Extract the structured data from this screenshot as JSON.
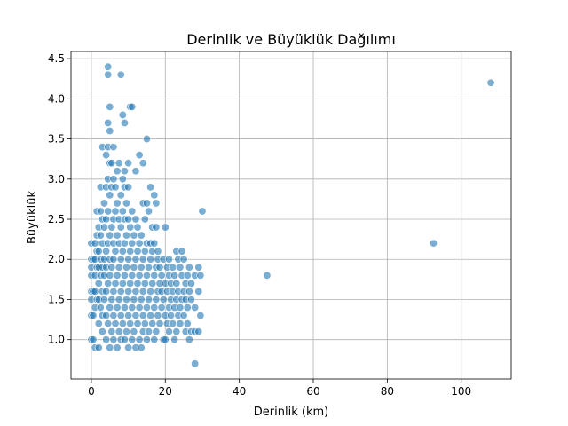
{
  "chart_data": {
    "type": "scatter",
    "title": "Derinlik ve Büyüklük Dağılımı",
    "xlabel": "Derinlik (km)",
    "ylabel": "Büyüklük",
    "xlim": [
      -5.5,
      113.5
    ],
    "ylim": [
      0.51,
      4.59
    ],
    "xticks": [
      "0",
      "20",
      "40",
      "60",
      "80",
      "100"
    ],
    "yticks": [
      "1.0",
      "1.5",
      "2.0",
      "2.5",
      "3.0",
      "3.5",
      "4.0",
      "4.5"
    ],
    "grid": true,
    "legend": "none",
    "series": [
      {
        "color": "#1f77b4",
        "points": [
          [
            0,
            1.0
          ],
          [
            0,
            1.3
          ],
          [
            0,
            1.5
          ],
          [
            0,
            1.6
          ],
          [
            0,
            1.8
          ],
          [
            0,
            1.9
          ],
          [
            0,
            2.0
          ],
          [
            0,
            2.2
          ],
          [
            0.5,
            1.0
          ],
          [
            0.5,
            1.3
          ],
          [
            0.5,
            1.6
          ],
          [
            0.5,
            2.0
          ],
          [
            1,
            1.4
          ],
          [
            1,
            1.6
          ],
          [
            1,
            1.8
          ],
          [
            1,
            2.0
          ],
          [
            1,
            2.2
          ],
          [
            1,
            0.9
          ],
          [
            1.5,
            1.5
          ],
          [
            1.5,
            1.9
          ],
          [
            1.5,
            2.1
          ],
          [
            1.5,
            2.3
          ],
          [
            1.5,
            2.6
          ],
          [
            2,
            1.2
          ],
          [
            2,
            1.5
          ],
          [
            2,
            1.7
          ],
          [
            2,
            1.9
          ],
          [
            2,
            2.1
          ],
          [
            2,
            2.4
          ],
          [
            2,
            0.9
          ],
          [
            2.5,
            1.4
          ],
          [
            2.5,
            1.8
          ],
          [
            2.5,
            2.0
          ],
          [
            2.5,
            2.3
          ],
          [
            2.5,
            2.6
          ],
          [
            2.5,
            2.9
          ],
          [
            3,
            1.1
          ],
          [
            3,
            1.3
          ],
          [
            3,
            1.6
          ],
          [
            3,
            1.9
          ],
          [
            3,
            2.2
          ],
          [
            3,
            2.5
          ],
          [
            3,
            3.4
          ],
          [
            3.5,
            1.5
          ],
          [
            3.5,
            1.8
          ],
          [
            3.5,
            2.0
          ],
          [
            3.5,
            2.4
          ],
          [
            3.5,
            2.7
          ],
          [
            4,
            1.0
          ],
          [
            4,
            1.3
          ],
          [
            4,
            1.6
          ],
          [
            4,
            1.9
          ],
          [
            4,
            2.1
          ],
          [
            4,
            2.5
          ],
          [
            4,
            2.9
          ],
          [
            4,
            3.3
          ],
          [
            4.5,
            1.2
          ],
          [
            4.5,
            1.7
          ],
          [
            4.5,
            2.2
          ],
          [
            4.5,
            2.6
          ],
          [
            4.5,
            3.0
          ],
          [
            4.5,
            3.4
          ],
          [
            4.5,
            3.7
          ],
          [
            4.5,
            4.3
          ],
          [
            4.5,
            4.4
          ],
          [
            5,
            0.9
          ],
          [
            5,
            1.4
          ],
          [
            5,
            1.8
          ],
          [
            5,
            2.0
          ],
          [
            5,
            2.3
          ],
          [
            5,
            2.8
          ],
          [
            5,
            3.2
          ],
          [
            5,
            3.6
          ],
          [
            5,
            3.9
          ],
          [
            5.5,
            1.1
          ],
          [
            5.5,
            1.5
          ],
          [
            5.5,
            1.9
          ],
          [
            5.5,
            2.4
          ],
          [
            5.5,
            2.9
          ],
          [
            5.5,
            3.2
          ],
          [
            6,
            1.0
          ],
          [
            6,
            1.3
          ],
          [
            6,
            1.6
          ],
          [
            6,
            2.0
          ],
          [
            6,
            2.2
          ],
          [
            6,
            2.5
          ],
          [
            6,
            3.0
          ],
          [
            6,
            3.4
          ],
          [
            6.5,
            1.2
          ],
          [
            6.5,
            1.7
          ],
          [
            6.5,
            2.1
          ],
          [
            6.5,
            2.6
          ],
          [
            6.5,
            2.9
          ],
          [
            7,
            0.9
          ],
          [
            7,
            1.4
          ],
          [
            7,
            1.8
          ],
          [
            7,
            2.3
          ],
          [
            7,
            2.7
          ],
          [
            7,
            3.1
          ],
          [
            7.5,
            1.1
          ],
          [
            7.5,
            1.5
          ],
          [
            7.5,
            1.9
          ],
          [
            7.5,
            2.2
          ],
          [
            7.5,
            2.5
          ],
          [
            7.5,
            3.2
          ],
          [
            8,
            1.0
          ],
          [
            8,
            1.3
          ],
          [
            8,
            1.6
          ],
          [
            8,
            2.0
          ],
          [
            8,
            2.4
          ],
          [
            8,
            2.8
          ],
          [
            8,
            4.3
          ],
          [
            8.5,
            1.2
          ],
          [
            8.5,
            1.7
          ],
          [
            8.5,
            2.1
          ],
          [
            8.5,
            2.6
          ],
          [
            8.5,
            3.0
          ],
          [
            8.5,
            3.8
          ],
          [
            9,
            1.0
          ],
          [
            9,
            1.4
          ],
          [
            9,
            1.8
          ],
          [
            9,
            2.2
          ],
          [
            9,
            2.5
          ],
          [
            9,
            2.9
          ],
          [
            9,
            3.1
          ],
          [
            9,
            3.7
          ],
          [
            9.5,
            1.1
          ],
          [
            9.5,
            1.5
          ],
          [
            9.5,
            1.9
          ],
          [
            9.5,
            2.3
          ],
          [
            9.5,
            2.7
          ],
          [
            10,
            0.9
          ],
          [
            10,
            1.3
          ],
          [
            10,
            1.6
          ],
          [
            10,
            2.0
          ],
          [
            10,
            2.5
          ],
          [
            10,
            2.9
          ],
          [
            10,
            3.2
          ],
          [
            10.5,
            1.2
          ],
          [
            10.5,
            1.7
          ],
          [
            10.5,
            2.1
          ],
          [
            10.5,
            2.4
          ],
          [
            10.5,
            3.9
          ],
          [
            11,
            1.0
          ],
          [
            11,
            1.4
          ],
          [
            11,
            1.8
          ],
          [
            11,
            2.2
          ],
          [
            11,
            2.6
          ],
          [
            11,
            3.9
          ],
          [
            11.5,
            1.1
          ],
          [
            11.5,
            1.5
          ],
          [
            11.5,
            1.9
          ],
          [
            11.5,
            2.3
          ],
          [
            12,
            0.9
          ],
          [
            12,
            1.3
          ],
          [
            12,
            1.6
          ],
          [
            12,
            2.0
          ],
          [
            12,
            2.5
          ],
          [
            12,
            3.1
          ],
          [
            12.5,
            1.2
          ],
          [
            12.5,
            1.7
          ],
          [
            12.5,
            2.1
          ],
          [
            12.5,
            2.4
          ],
          [
            13,
            1.0
          ],
          [
            13,
            1.4
          ],
          [
            13,
            1.8
          ],
          [
            13,
            2.2
          ],
          [
            13,
            3.3
          ],
          [
            13.5,
            0.9
          ],
          [
            13.5,
            1.5
          ],
          [
            13.5,
            1.9
          ],
          [
            13.5,
            2.3
          ],
          [
            14,
            1.1
          ],
          [
            14,
            1.3
          ],
          [
            14,
            1.6
          ],
          [
            14,
            2.0
          ],
          [
            14,
            2.7
          ],
          [
            14,
            3.2
          ],
          [
            14.5,
            1.2
          ],
          [
            14.5,
            1.7
          ],
          [
            14.5,
            2.1
          ],
          [
            14.5,
            2.5
          ],
          [
            15,
            1.0
          ],
          [
            15,
            1.4
          ],
          [
            15,
            1.8
          ],
          [
            15,
            2.2
          ],
          [
            15,
            2.7
          ],
          [
            15,
            3.5
          ],
          [
            15.5,
            1.1
          ],
          [
            15.5,
            1.5
          ],
          [
            15.5,
            1.9
          ],
          [
            15.5,
            2.6
          ],
          [
            16,
            1.3
          ],
          [
            16,
            1.6
          ],
          [
            16,
            2.0
          ],
          [
            16,
            2.2
          ],
          [
            16,
            2.9
          ],
          [
            16.5,
            1.2
          ],
          [
            16.5,
            1.7
          ],
          [
            16.5,
            2.1
          ],
          [
            16.5,
            2.4
          ],
          [
            17,
            1.0
          ],
          [
            17,
            1.4
          ],
          [
            17,
            1.8
          ],
          [
            17,
            2.2
          ],
          [
            17,
            2.8
          ],
          [
            17.5,
            1.1
          ],
          [
            17.5,
            1.5
          ],
          [
            17.5,
            1.9
          ],
          [
            17.5,
            2.4
          ],
          [
            17.5,
            2.7
          ],
          [
            18,
            1.3
          ],
          [
            18,
            1.6
          ],
          [
            18,
            2.0
          ],
          [
            18,
            2.1
          ],
          [
            18.5,
            1.2
          ],
          [
            18.5,
            1.7
          ],
          [
            18.5,
            1.9
          ],
          [
            19,
            1.4
          ],
          [
            19,
            1.8
          ],
          [
            19,
            1.6
          ],
          [
            19.5,
            1.0
          ],
          [
            19.5,
            1.5
          ],
          [
            19.5,
            2.0
          ],
          [
            20,
            1.0
          ],
          [
            20,
            1.3
          ],
          [
            20,
            1.7
          ],
          [
            20,
            2.4
          ],
          [
            20.5,
            1.2
          ],
          [
            20.5,
            1.6
          ],
          [
            20.5,
            1.9
          ],
          [
            21,
            1.1
          ],
          [
            21,
            1.4
          ],
          [
            21,
            1.8
          ],
          [
            21,
            2.0
          ],
          [
            21.5,
            1.3
          ],
          [
            21.5,
            1.5
          ],
          [
            21.5,
            1.7
          ],
          [
            22,
            1.2
          ],
          [
            22,
            1.6
          ],
          [
            22,
            1.9
          ],
          [
            22.5,
            1.0
          ],
          [
            22.5,
            1.4
          ],
          [
            22.5,
            1.8
          ],
          [
            23,
            1.1
          ],
          [
            23,
            1.5
          ],
          [
            23,
            1.7
          ],
          [
            23,
            2.1
          ],
          [
            23.5,
            1.3
          ],
          [
            23.5,
            1.6
          ],
          [
            23.5,
            2.0
          ],
          [
            24,
            1.2
          ],
          [
            24,
            1.4
          ],
          [
            24,
            1.9
          ],
          [
            24.5,
            1.5
          ],
          [
            24.5,
            1.8
          ],
          [
            24.5,
            2.1
          ],
          [
            25,
            1.3
          ],
          [
            25,
            1.6
          ],
          [
            25,
            2.0
          ],
          [
            25.5,
            1.1
          ],
          [
            25.5,
            1.5
          ],
          [
            25.5,
            1.7
          ],
          [
            26,
            1.2
          ],
          [
            26,
            1.4
          ],
          [
            26,
            1.8
          ],
          [
            26.5,
            1.0
          ],
          [
            26.5,
            1.6
          ],
          [
            26.5,
            1.9
          ],
          [
            27,
            1.1
          ],
          [
            27,
            1.5
          ],
          [
            27,
            1.7
          ],
          [
            28,
            1.1
          ],
          [
            28,
            1.4
          ],
          [
            28,
            1.8
          ],
          [
            28,
            0.7
          ],
          [
            29,
            1.1
          ],
          [
            29,
            1.6
          ],
          [
            29,
            1.9
          ],
          [
            29.5,
            1.3
          ],
          [
            29.5,
            1.8
          ],
          [
            30,
            2.6
          ],
          [
            47.5,
            1.8
          ],
          [
            92.5,
            2.2
          ],
          [
            108,
            4.2
          ]
        ]
      }
    ]
  }
}
